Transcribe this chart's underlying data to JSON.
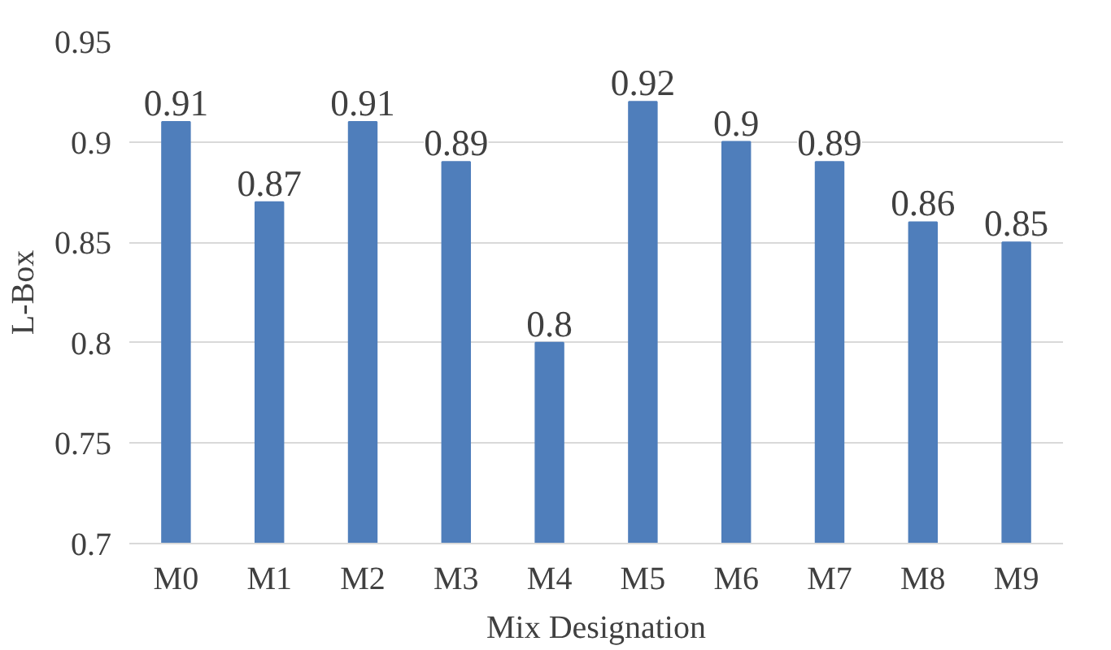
{
  "chart_data": {
    "type": "bar",
    "xlabel": "Mix Designation",
    "ylabel": "L-Box",
    "categories": [
      "M0",
      "M1",
      "M2",
      "M3",
      "M4",
      "M5",
      "M6",
      "M7",
      "M8",
      "M9"
    ],
    "values": [
      0.91,
      0.87,
      0.91,
      0.89,
      0.8,
      0.92,
      0.9,
      0.89,
      0.86,
      0.85
    ],
    "color": "#4f7ebb",
    "ylim": [
      0.7,
      0.95
    ],
    "yticks": [
      0.7,
      0.75,
      0.8,
      0.85,
      0.9,
      0.95
    ],
    "grid": "y",
    "data_labels": true
  }
}
